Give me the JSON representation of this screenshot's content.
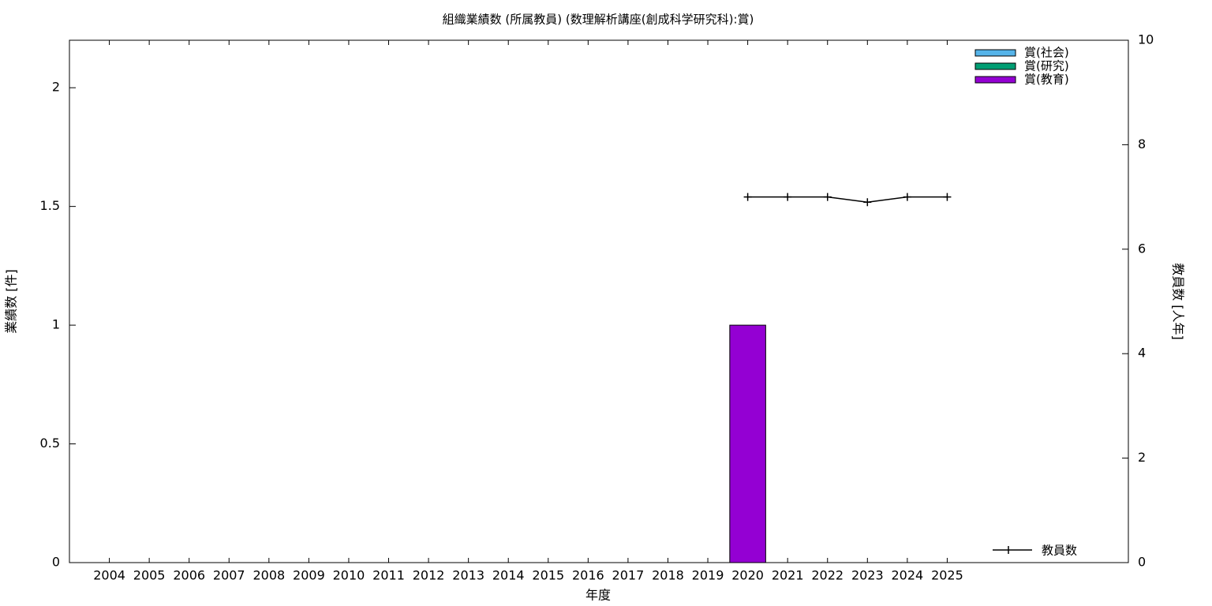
{
  "chart_data": {
    "type": "bar",
    "stacked": true,
    "title": "組織業績数 (所属教員) (数理解析講座(創成科学研究科):賞)",
    "x_label": "年度",
    "y_label": "業績数 [件]",
    "y2_label": "教員数 [人年]",
    "categories": [
      "2004",
      "2005",
      "2006",
      "2007",
      "2008",
      "2009",
      "2010",
      "2011",
      "2012",
      "2013",
      "2014",
      "2015",
      "2016",
      "2017",
      "2018",
      "2019",
      "2020",
      "2021",
      "2022",
      "2023",
      "2024",
      "2025"
    ],
    "series": [
      {
        "name": "賞(社会)",
        "color": "#56b4e9",
        "values": [
          0,
          0,
          0,
          0,
          0,
          0,
          0,
          0,
          0,
          0,
          0,
          0,
          0,
          0,
          0,
          0,
          0,
          0,
          0,
          0,
          0,
          0
        ]
      },
      {
        "name": "賞(研究)",
        "color": "#009e73",
        "values": [
          0,
          0,
          0,
          0,
          0,
          0,
          0,
          0,
          0,
          0,
          0,
          0,
          0,
          0,
          0,
          0,
          0,
          0,
          0,
          0,
          0,
          0
        ]
      },
      {
        "name": "賞(教育)",
        "color": "#9400d3",
        "values": [
          0,
          0,
          0,
          0,
          0,
          0,
          0,
          0,
          0,
          0,
          0,
          0,
          0,
          0,
          0,
          0,
          1,
          0,
          0,
          0,
          0,
          0
        ]
      },
      {
        "name": "教員数",
        "type": "line",
        "axis": "y2",
        "color": "#000000",
        "values": [
          null,
          null,
          null,
          null,
          null,
          null,
          null,
          null,
          null,
          null,
          null,
          null,
          null,
          null,
          null,
          null,
          7,
          7,
          7,
          6.9,
          7,
          7
        ]
      }
    ],
    "ylim": [
      0,
      2.2
    ],
    "yticks": [
      0,
      0.5,
      1,
      1.5,
      2
    ],
    "y2lim": [
      0,
      10
    ],
    "y2ticks": [
      0,
      2,
      4,
      6,
      8,
      10
    ],
    "legend": "top-right"
  }
}
